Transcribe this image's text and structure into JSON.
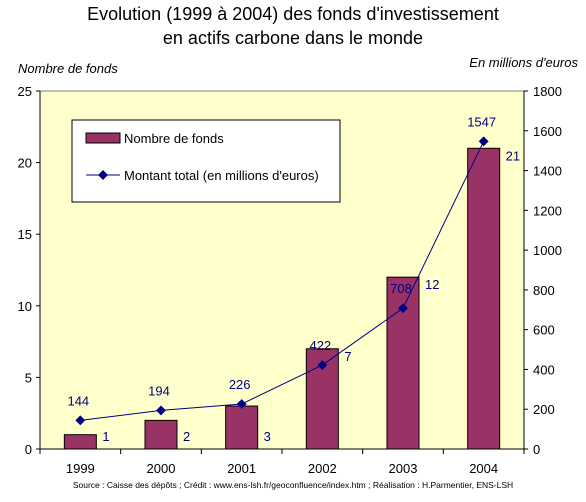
{
  "chart_data": {
    "type": "bar+line",
    "title_line1": "Evolution (1999 à 2004) des fonds d'investissement",
    "title_line2": "en actifs carbone dans le monde",
    "ylabel_left": "Nombre de fonds",
    "ylabel_right": "En millions d'euros",
    "categories": [
      "1999",
      "2000",
      "2001",
      "2002",
      "2003",
      "2004"
    ],
    "series": [
      {
        "name": "Nombre de fonds",
        "type": "bar",
        "axis": "left",
        "color": "#993366",
        "values": [
          1,
          2,
          3,
          7,
          12,
          21
        ],
        "labels": [
          "1",
          "2",
          "3",
          "7",
          "12",
          "21"
        ]
      },
      {
        "name": "Montant total (en millions d'euros)",
        "type": "line",
        "axis": "right",
        "color": "#000080",
        "values": [
          144,
          194,
          226,
          422,
          708,
          1547
        ],
        "labels": [
          "144",
          "194",
          "226",
          "422",
          "708",
          "1547"
        ]
      }
    ],
    "ylim_left": [
      0,
      25
    ],
    "yticks_left": [
      "0",
      "5",
      "10",
      "15",
      "20",
      "25"
    ],
    "ylim_right": [
      0,
      1800
    ],
    "yticks_right": [
      "0",
      "200",
      "400",
      "600",
      "800",
      "1000",
      "1200",
      "1400",
      "1600",
      "1800"
    ],
    "plot_background": "#ffffcc",
    "label_color": "#000080",
    "legend": {
      "placement": "top-left inside plot"
    }
  },
  "source": "Source : Caisse des dépôts ; Crédit : www.ens-lsh.fr/geoconfluence/index.htm ; Réalisation : H.Parmentier, ENS-LSH"
}
